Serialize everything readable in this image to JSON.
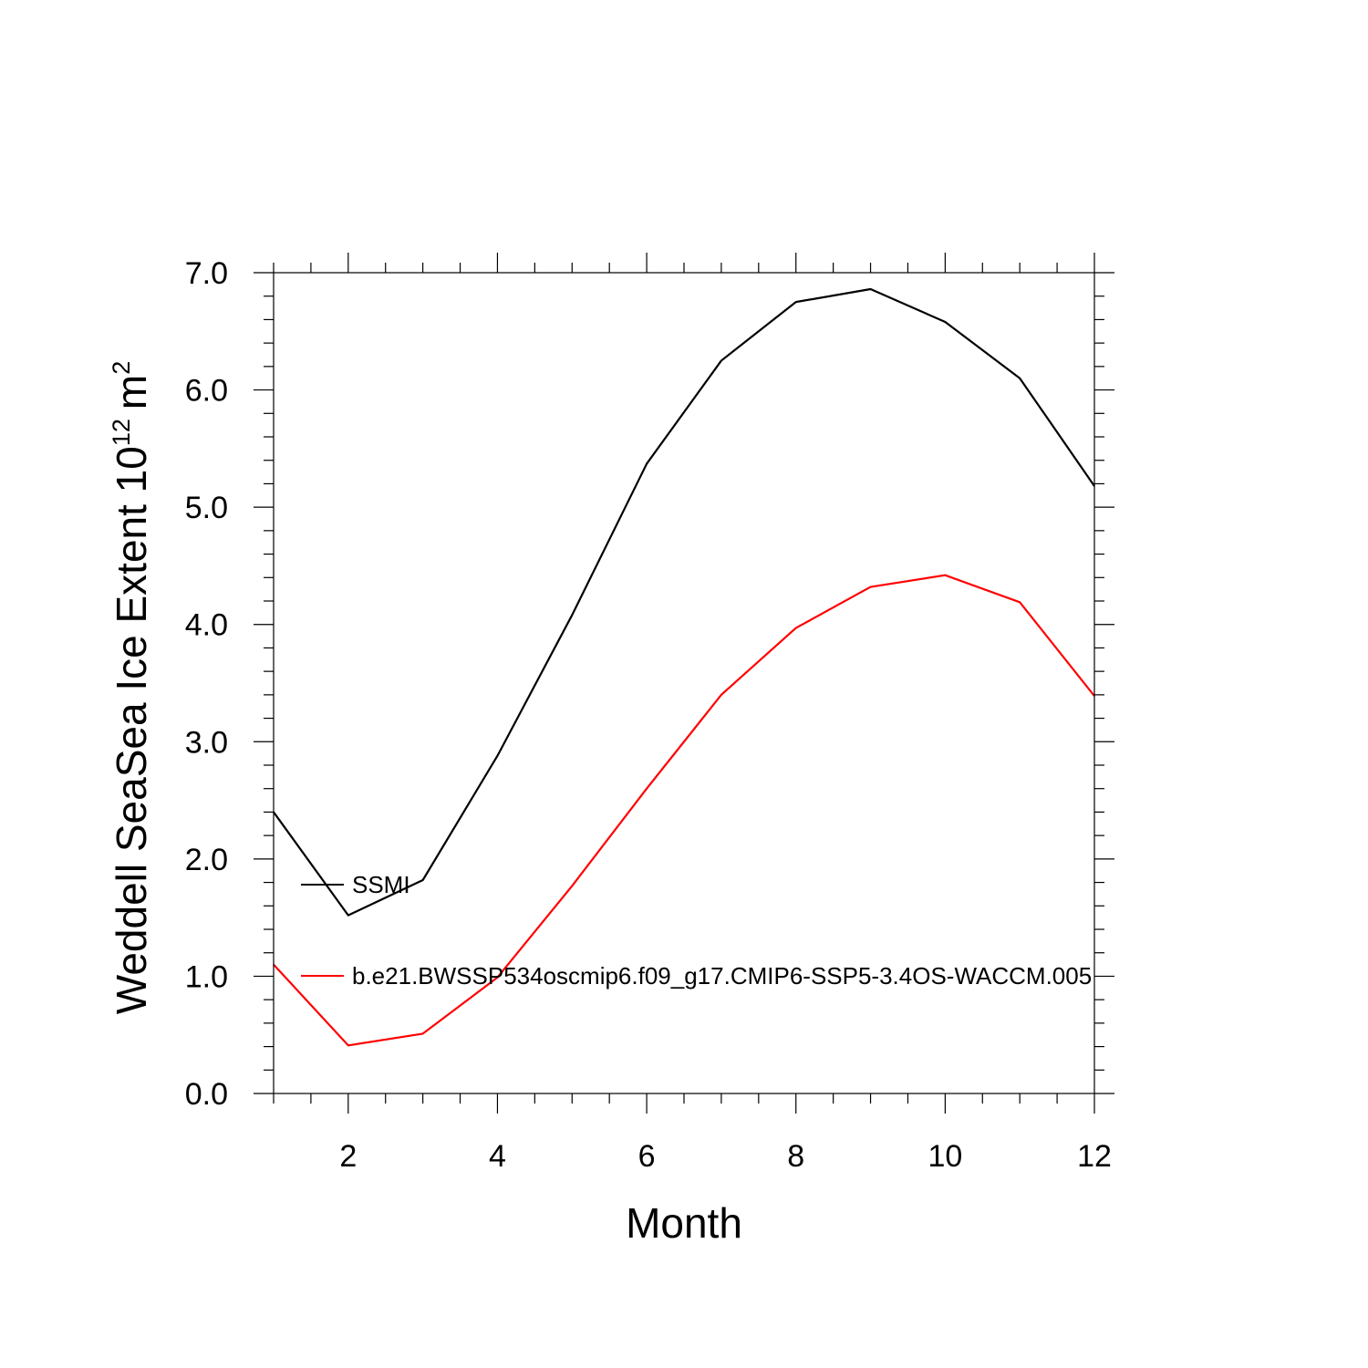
{
  "chart_data": {
    "type": "line",
    "title": "",
    "xlabel": "Month",
    "ylabel": {
      "text": "Weddell SeaSea Ice Extent 10",
      "exponent": "12",
      "unit": "m",
      "unit_exponent": "2"
    },
    "xlim": [
      1,
      12
    ],
    "ylim": [
      0.0,
      7.0
    ],
    "x_ticks": [
      2,
      4,
      6,
      8,
      10,
      12
    ],
    "x_tick_labels": [
      "2",
      "4",
      "6",
      "8",
      "10",
      "12"
    ],
    "y_ticks": [
      0,
      1,
      2,
      3,
      4,
      5,
      6,
      7
    ],
    "y_tick_labels": [
      "0.0",
      "1.0",
      "2.0",
      "3.0",
      "4.0",
      "5.0",
      "6.0",
      "7.0"
    ],
    "grid": false,
    "legend_position": "lower-left, inside plot",
    "x": [
      1,
      2,
      3,
      4,
      5,
      6,
      7,
      8,
      9,
      10,
      11,
      12
    ],
    "series": [
      {
        "name": "SSMI",
        "color": "#000000",
        "values": [
          2.4,
          1.52,
          1.82,
          2.88,
          4.08,
          5.37,
          6.25,
          6.75,
          6.86,
          6.58,
          6.1,
          5.18
        ]
      },
      {
        "name": "b.e21.BWSSP534oscmip6.f09_g17.CMIP6-SSP5-3.4OS-WACCM.005",
        "color": "#ff0000",
        "values": [
          1.1,
          0.41,
          0.51,
          0.99,
          1.77,
          2.6,
          3.4,
          3.97,
          4.32,
          4.42,
          4.19,
          3.39
        ]
      }
    ]
  }
}
